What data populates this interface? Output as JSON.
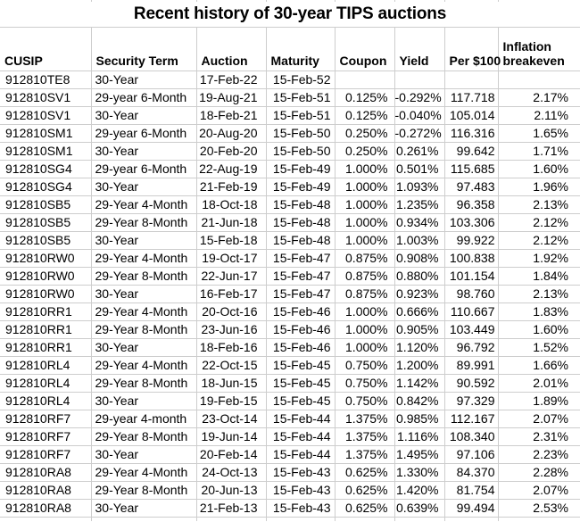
{
  "title": "Recent history of 30-year TIPS auctions",
  "columns": [
    {
      "key": "cusip",
      "label": "CUSIP"
    },
    {
      "key": "term",
      "label": "Security Term"
    },
    {
      "key": "auction",
      "label": "Auction"
    },
    {
      "key": "maturity",
      "label": "Maturity"
    },
    {
      "key": "coupon",
      "label": "Coupon"
    },
    {
      "key": "yield",
      "label": "Yield"
    },
    {
      "key": "per100",
      "label": "Per $100"
    },
    {
      "key": "breakeven",
      "label": "Inflation breakeven"
    }
  ],
  "rows": [
    [
      "912810TE8",
      "30-Year",
      "17-Feb-22",
      "15-Feb-52",
      "",
      "",
      "",
      ""
    ],
    [
      "912810SV1",
      "29-year 6-Month",
      "19-Aug-21",
      "15-Feb-51",
      "0.125%",
      "-0.292%",
      "117.718",
      "2.17%"
    ],
    [
      "912810SV1",
      "30-Year",
      "18-Feb-21",
      "15-Feb-51",
      "0.125%",
      "-0.040%",
      "105.014",
      "2.11%"
    ],
    [
      "912810SM1",
      "29-year 6-Month",
      "20-Aug-20",
      "15-Feb-50",
      "0.250%",
      "-0.272%",
      "116.316",
      "1.65%"
    ],
    [
      "912810SM1",
      "30-Year",
      "20-Feb-20",
      "15-Feb-50",
      "0.250%",
      "0.261%",
      "99.642",
      "1.71%"
    ],
    [
      "912810SG4",
      "29-year 6-Month",
      "22-Aug-19",
      "15-Feb-49",
      "1.000%",
      "0.501%",
      "115.685",
      "1.60%"
    ],
    [
      "912810SG4",
      "30-Year",
      "21-Feb-19",
      "15-Feb-49",
      "1.000%",
      "1.093%",
      "97.483",
      "1.96%"
    ],
    [
      "912810SB5",
      "29-Year 4-Month",
      "18-Oct-18",
      "15-Feb-48",
      "1.000%",
      "1.235%",
      "96.358",
      "2.13%"
    ],
    [
      "912810SB5",
      "29-Year 8-Month",
      "21-Jun-18",
      "15-Feb-48",
      "1.000%",
      "0.934%",
      "103.306",
      "2.12%"
    ],
    [
      "912810SB5",
      "30-Year",
      "15-Feb-18",
      "15-Feb-48",
      "1.000%",
      "1.003%",
      "99.922",
      "2.12%"
    ],
    [
      "912810RW0",
      "29-Year 4-Month",
      "19-Oct-17",
      "15-Feb-47",
      "0.875%",
      "0.908%",
      "100.838",
      "1.92%"
    ],
    [
      "912810RW0",
      "29-Year 8-Month",
      "22-Jun-17",
      "15-Feb-47",
      "0.875%",
      "0.880%",
      "101.154",
      "1.84%"
    ],
    [
      "912810RW0",
      "30-Year",
      "16-Feb-17",
      "15-Feb-47",
      "0.875%",
      "0.923%",
      "98.760",
      "2.13%"
    ],
    [
      "912810RR1",
      "29-Year 4-Month",
      "20-Oct-16",
      "15-Feb-46",
      "1.000%",
      "0.666%",
      "110.667",
      "1.83%"
    ],
    [
      "912810RR1",
      "29-Year 8-Month",
      "23-Jun-16",
      "15-Feb-46",
      "1.000%",
      "0.905%",
      "103.449",
      "1.60%"
    ],
    [
      "912810RR1",
      "30-Year",
      "18-Feb-16",
      "15-Feb-46",
      "1.000%",
      "1.120%",
      "96.792",
      "1.52%"
    ],
    [
      "912810RL4",
      "29-Year 4-Month",
      "22-Oct-15",
      "15-Feb-45",
      "0.750%",
      "1.200%",
      "89.991",
      "1.66%"
    ],
    [
      "912810RL4",
      "29-Year 8-Month",
      "18-Jun-15",
      "15-Feb-45",
      "0.750%",
      "1.142%",
      "90.592",
      "2.01%"
    ],
    [
      "912810RL4",
      "30-Year",
      "19-Feb-15",
      "15-Feb-45",
      "0.750%",
      "0.842%",
      "97.329",
      "1.89%"
    ],
    [
      "912810RF7",
      "29-year 4-month",
      "23-Oct-14",
      "15-Feb-44",
      "1.375%",
      "0.985%",
      "112.167",
      "2.07%"
    ],
    [
      "912810RF7",
      "29-Year 8-Month",
      "19-Jun-14",
      "15-Feb-44",
      "1.375%",
      "1.116%",
      "108.340",
      "2.31%"
    ],
    [
      "912810RF7",
      "30-Year",
      "20-Feb-14",
      "15-Feb-44",
      "1.375%",
      "1.495%",
      "97.106",
      "2.23%"
    ],
    [
      "912810RA8",
      "29-Year 4-Month",
      "24-Oct-13",
      "15-Feb-43",
      "0.625%",
      "1.330%",
      "84.370",
      "2.28%"
    ],
    [
      "912810RA8",
      "29-Year 8-Month",
      "20-Jun-13",
      "15-Feb-43",
      "0.625%",
      "1.420%",
      "81.754",
      "2.07%"
    ],
    [
      "912810RA8",
      "30-Year",
      "21-Feb-13",
      "15-Feb-43",
      "0.625%",
      "0.639%",
      "99.494",
      "2.53%"
    ]
  ],
  "colors": {
    "gridline": "#cdcdcd",
    "text": "#000000",
    "background": "#ffffff"
  }
}
